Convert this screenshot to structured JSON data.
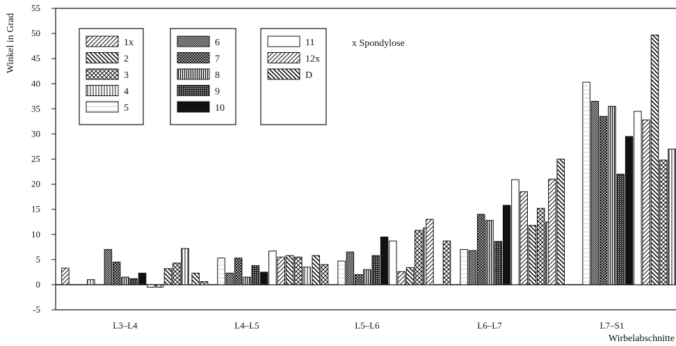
{
  "chart_data": {
    "type": "bar",
    "ylabel": "Winkel in Grad",
    "xlabel": "Wirbelabschnitte",
    "ylim": [
      -5,
      55
    ],
    "yticks": [
      -5,
      0,
      5,
      10,
      15,
      20,
      25,
      30,
      35,
      40,
      45,
      50,
      55
    ],
    "categories": [
      "L3–L4",
      "L4–L5",
      "L5–L6",
      "L6–L7",
      "L7–S1"
    ],
    "note": "x Spondylose",
    "series": [
      {
        "name": "1x",
        "pattern": "diag-right",
        "values": [
          3.3,
          0,
          0,
          13.0,
          21.0
        ]
      },
      {
        "name": "2",
        "pattern": "diag-left",
        "values": [
          0,
          2.3,
          5.8,
          0,
          25.0
        ]
      },
      {
        "name": "3",
        "pattern": "crosshatch",
        "values": [
          0,
          0.6,
          4.0,
          8.7,
          0
        ]
      },
      {
        "name": "4",
        "pattern": "vertical",
        "values": [
          1.0,
          0,
          0,
          0,
          0
        ]
      },
      {
        "name": "5",
        "pattern": "horizontal",
        "values": [
          0,
          5.3,
          4.7,
          7.0,
          40.3
        ]
      },
      {
        "name": "6",
        "pattern": "dense-diag",
        "values": [
          7.0,
          2.3,
          6.5,
          6.8,
          36.5
        ]
      },
      {
        "name": "7",
        "pattern": "dense-crosshatch",
        "values": [
          4.5,
          5.3,
          2.0,
          14.0,
          33.5
        ]
      },
      {
        "name": "8",
        "pattern": "dense-vertical",
        "values": [
          1.5,
          1.5,
          3.0,
          12.8,
          35.5
        ]
      },
      {
        "name": "9",
        "pattern": "dotted-grid",
        "values": [
          1.2,
          3.8,
          5.8,
          8.6,
          22.0
        ]
      },
      {
        "name": "10",
        "pattern": "solid",
        "values": [
          2.3,
          2.5,
          9.5,
          15.8,
          29.5
        ]
      },
      {
        "name": "11",
        "pattern": "plain",
        "values": [
          -0.5,
          6.7,
          8.7,
          20.9,
          34.5
        ]
      },
      {
        "name": "12x",
        "pattern": "diag-right",
        "values": [
          -0.5,
          5.5,
          2.6,
          18.5,
          32.8
        ]
      },
      {
        "name": "D",
        "pattern": "diag-left",
        "values": [
          3.2,
          5.8,
          3.4,
          11.8,
          49.7
        ]
      },
      {
        "name": "",
        "pattern": "crosshatch",
        "values": [
          4.3,
          5.5,
          10.8,
          15.2,
          24.8
        ]
      },
      {
        "name": "",
        "pattern": "vertical",
        "values": [
          7.2,
          3.5,
          11.3,
          12.5,
          27.0
        ]
      }
    ],
    "legend": {
      "columns": [
        [
          "1x",
          "2",
          "3",
          "4",
          "5"
        ],
        [
          "6",
          "7",
          "8",
          "9",
          "10"
        ],
        [
          "11",
          "12x",
          "D"
        ]
      ],
      "placement": "top-left"
    },
    "grid": false
  }
}
